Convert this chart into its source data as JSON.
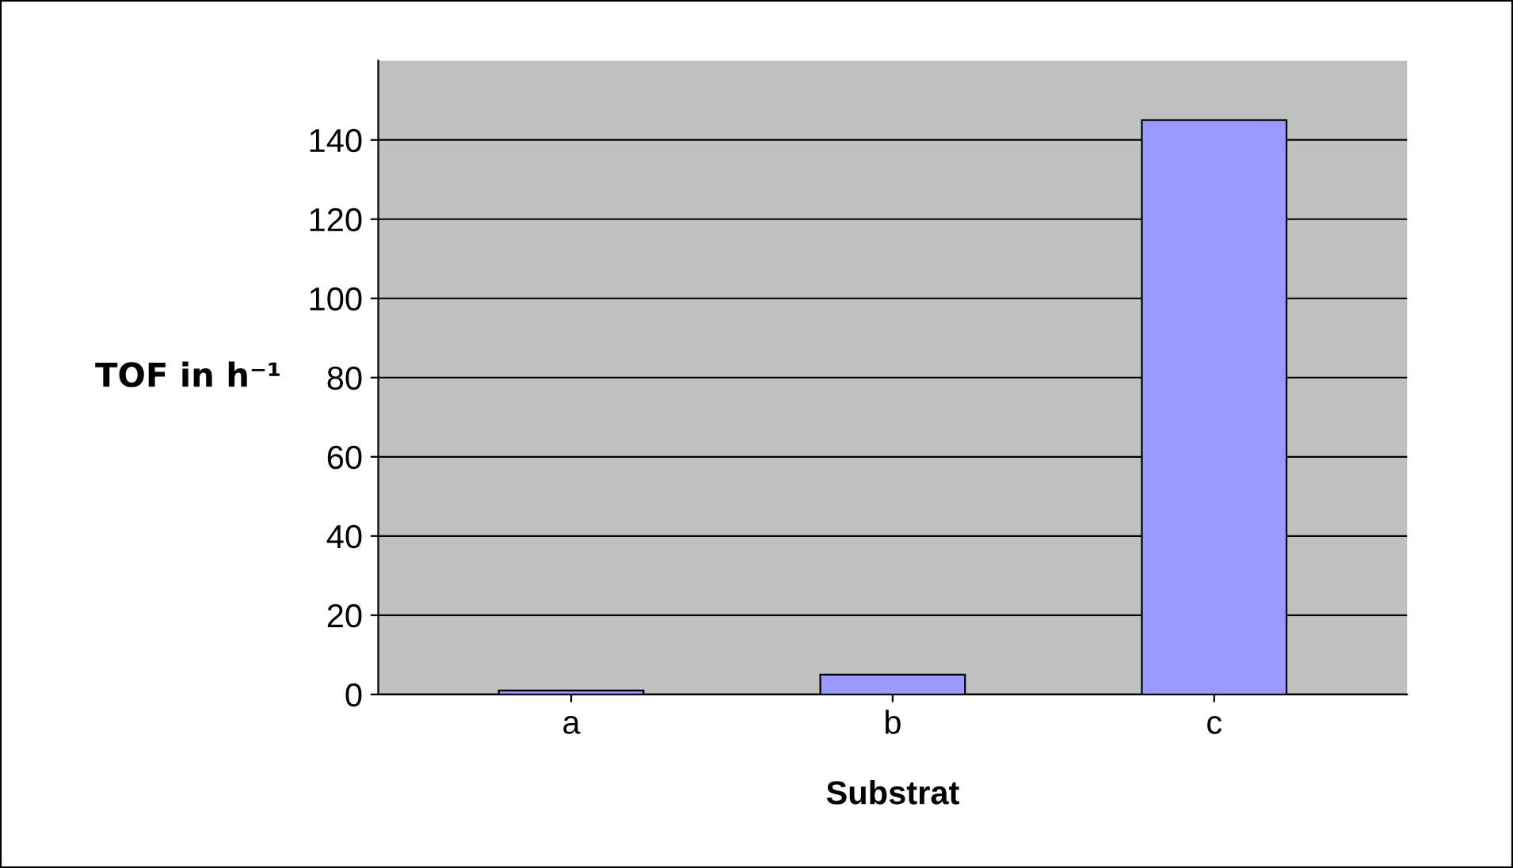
{
  "chart_data": {
    "type": "bar",
    "xlabel": "Substrat",
    "ylabel": "TOF in h⁻¹",
    "categories": [
      "a",
      "b",
      "c"
    ],
    "values": [
      1,
      5,
      145
    ],
    "color": "#9999ff",
    "ylim": [
      0,
      160
    ],
    "yticks": [
      0,
      20,
      40,
      60,
      80,
      100,
      120,
      140
    ],
    "grid": "y"
  }
}
